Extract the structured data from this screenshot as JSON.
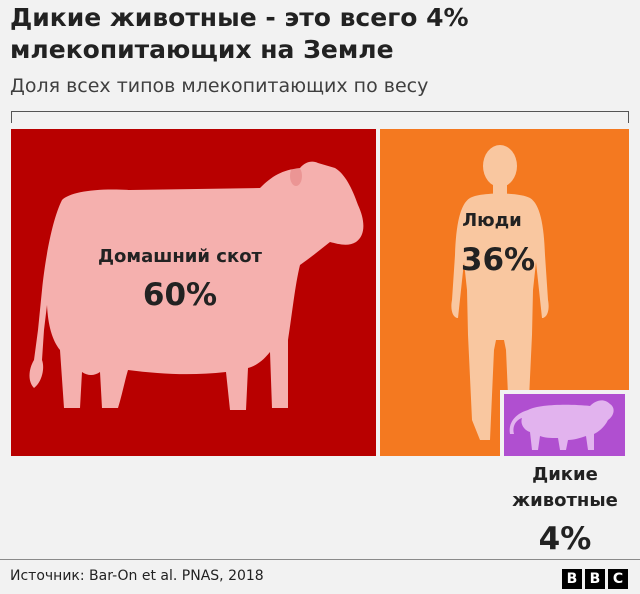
{
  "title": "Дикие животные - это всего 4% млекопитающих на Земле",
  "subtitle": "Доля всех типов млекопитающих по весу",
  "source": "Источник: Bar-On et al. PNAS, 2018",
  "logo": [
    "B",
    "B",
    "C"
  ],
  "chart_data": {
    "type": "treemap",
    "unit": "%",
    "items": [
      {
        "label": "Домашний скот",
        "value": 60,
        "value_label": "60%",
        "color": "#b80000",
        "icon": "cow-icon"
      },
      {
        "label": "Люди",
        "value": 36,
        "value_label": "36%",
        "color": "#f47920",
        "icon": "human-icon"
      },
      {
        "label_lines": [
          "Дикие",
          "животные"
        ],
        "value": 4,
        "value_label": "4%",
        "color": "#b04fd0",
        "icon": "tiger-icon"
      }
    ]
  },
  "colors": {
    "livestock": "#b80000",
    "humans": "#f47920",
    "wild": "#b04fd0",
    "silhouette_light": "#f5b0ae",
    "human_silhouette": "#f9c7a0",
    "tiger_silhouette": "#e2b3ee"
  }
}
